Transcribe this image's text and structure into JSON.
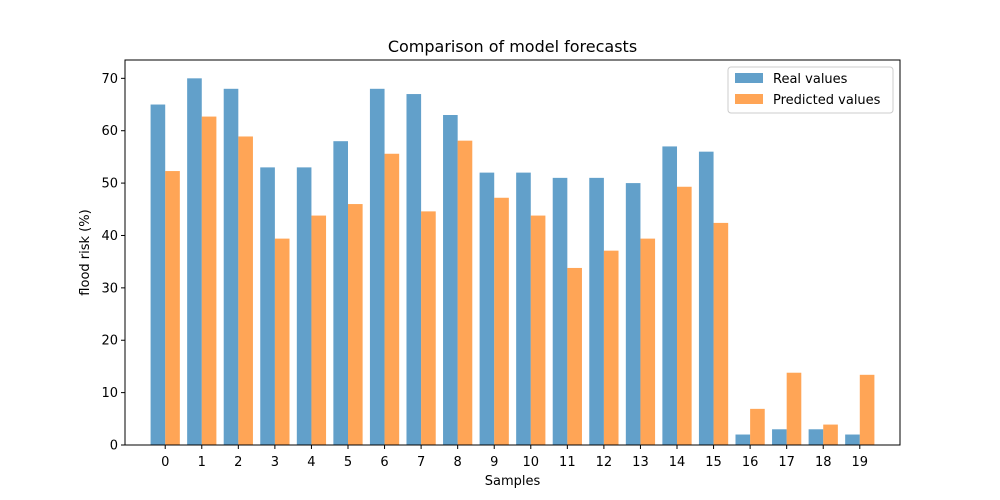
{
  "chart_data": {
    "type": "bar",
    "title": "Comparison of model forecasts",
    "xlabel": "Samples",
    "ylabel": "flood risk (%)",
    "categories": [
      "0",
      "1",
      "2",
      "3",
      "4",
      "5",
      "6",
      "7",
      "8",
      "9",
      "10",
      "11",
      "12",
      "13",
      "14",
      "15",
      "16",
      "17",
      "18",
      "19"
    ],
    "series": [
      {
        "name": "Real values",
        "color": "#1f77b4",
        "values": [
          65,
          70,
          68,
          53,
          53,
          58,
          68,
          67,
          63,
          52,
          52,
          51,
          51,
          50,
          57,
          56,
          2,
          3,
          3,
          2
        ]
      },
      {
        "name": "Predicted values",
        "color": "#ff7f0e",
        "values": [
          52.3,
          62.7,
          58.9,
          39.4,
          43.8,
          46.0,
          55.6,
          44.6,
          58.1,
          47.2,
          43.8,
          33.8,
          37.1,
          39.4,
          49.3,
          42.4,
          6.9,
          13.8,
          3.9,
          13.4
        ]
      }
    ],
    "ylim": [
      0,
      73.5
    ],
    "yticks": [
      0,
      10,
      20,
      30,
      40,
      50,
      60,
      70
    ],
    "grid": false,
    "legend_position": "top-right"
  }
}
